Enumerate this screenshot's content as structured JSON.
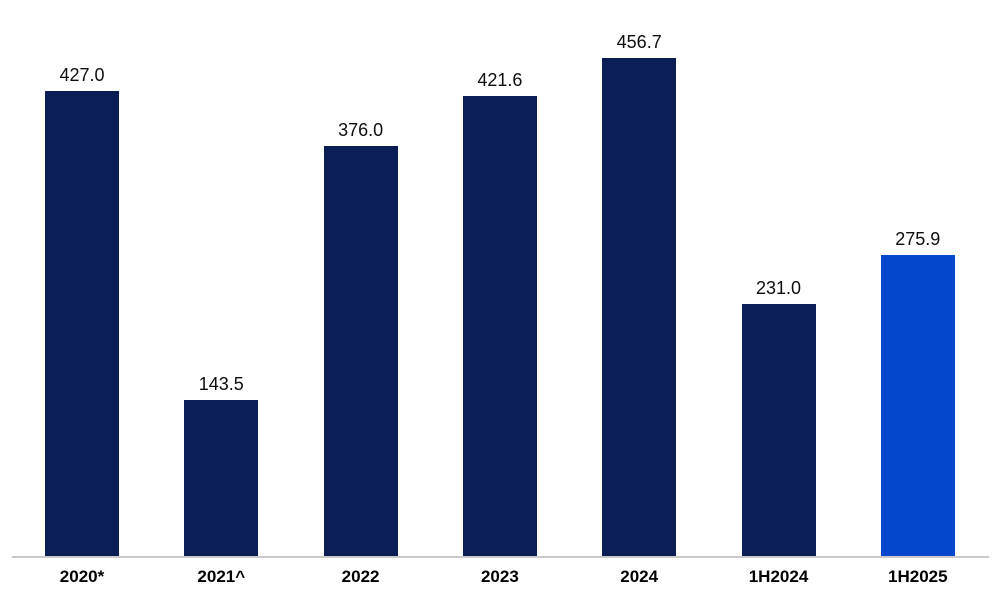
{
  "chart_data": {
    "type": "bar",
    "categories": [
      "2020*",
      "2021^",
      "2022",
      "2023",
      "2024",
      "1H2024",
      "1H2025"
    ],
    "values": [
      427.0,
      143.5,
      376.0,
      421.6,
      456.7,
      231.0,
      275.9
    ],
    "value_labels": [
      "427.0",
      "143.5",
      "376.0",
      "421.6",
      "456.7",
      "231.0",
      "275.9"
    ],
    "series": [
      {
        "name": "annual-and-half-year-values",
        "values": [
          427.0,
          143.5,
          376.0,
          421.6,
          456.7,
          231.0,
          275.9
        ]
      }
    ],
    "bar_colors": [
      "#0A1E55",
      "#0A1E55",
      "#0A1E55",
      "#0A1E55",
      "#0A1E55",
      "#0A1E55",
      "#0446CC"
    ],
    "title": "",
    "xlabel": "",
    "ylabel": "",
    "ylim": [
      0,
      510
    ],
    "grid": false,
    "legend": null,
    "colors": {
      "bar_default": "#0A1E55",
      "bar_highlight": "#0446CC",
      "axis_line": "#C9C9C9",
      "value_label_text": "#0D0D0D",
      "category_label_text": "#000000",
      "background": "#FFFFFF"
    }
  }
}
